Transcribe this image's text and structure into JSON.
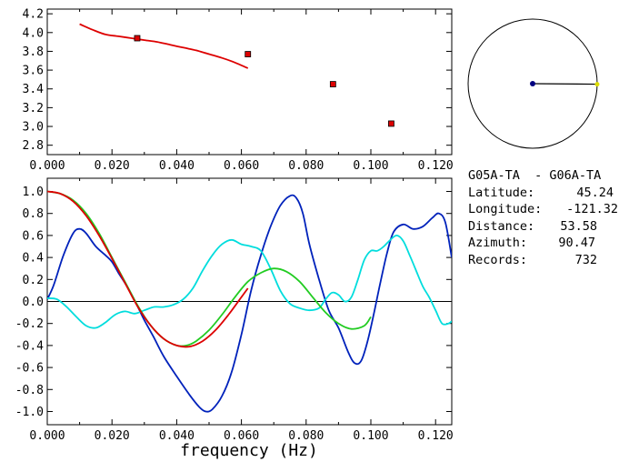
{
  "chart_data": [
    {
      "type": "scatter",
      "xlim": [
        0,
        0.125
      ],
      "ylim": [
        2.7,
        4.25
      ],
      "x_ticks": [
        "0.000",
        "0.020",
        "0.040",
        "0.060",
        "0.080",
        "0.100",
        "0.120"
      ],
      "y_ticks": [
        "2.8",
        "3.0",
        "3.2",
        "3.4",
        "3.6",
        "3.8",
        "4.0",
        "4.2"
      ],
      "grid": false,
      "series": [
        {
          "color": "#dd0000",
          "kind": "line",
          "x": [
            0.01,
            0.014,
            0.018,
            0.022,
            0.026,
            0.03,
            0.034,
            0.038,
            0.042,
            0.046,
            0.05,
            0.054,
            0.058,
            0.062
          ],
          "y": [
            4.09,
            4.03,
            3.98,
            3.96,
            3.94,
            3.92,
            3.9,
            3.87,
            3.84,
            3.81,
            3.77,
            3.73,
            3.68,
            3.62
          ]
        },
        {
          "color": "#dd0000",
          "kind": "markers",
          "x": [
            0.0278,
            0.062,
            0.0883,
            0.1063
          ],
          "y": [
            3.94,
            3.77,
            3.45,
            3.03
          ]
        }
      ]
    },
    {
      "type": "line",
      "xlabel": "frequency (Hz)",
      "xlim": [
        0,
        0.125
      ],
      "ylim": [
        -1.12,
        1.12
      ],
      "x_ticks": [
        "0.000",
        "0.020",
        "0.040",
        "0.060",
        "0.080",
        "0.100",
        "0.120"
      ],
      "y_ticks": [
        "1.0",
        "0.8",
        "0.6",
        "0.4",
        "0.2",
        "0.0",
        "-0.2",
        "-0.4",
        "-0.6",
        "-0.8",
        "-1.0"
      ],
      "zero_line": true,
      "grid": false,
      "series": [
        {
          "color": "#0022bb",
          "x": [
            0,
            0.002,
            0.005,
            0.008,
            0.01,
            0.012,
            0.015,
            0.018,
            0.02,
            0.022,
            0.025,
            0.028,
            0.03,
            0.033,
            0.036,
            0.04,
            0.044,
            0.047,
            0.049,
            0.051,
            0.054,
            0.057,
            0.06,
            0.063,
            0.066,
            0.069,
            0.072,
            0.075,
            0.077,
            0.079,
            0.081,
            0.084,
            0.087,
            0.09,
            0.093,
            0.095,
            0.097,
            0.099,
            0.101,
            0.103,
            0.105,
            0.107,
            0.11,
            0.113,
            0.116,
            0.119,
            0.121,
            0.123,
            0.125
          ],
          "y": [
            0.02,
            0.15,
            0.42,
            0.62,
            0.66,
            0.62,
            0.5,
            0.42,
            0.36,
            0.26,
            0.12,
            -0.05,
            -0.17,
            -0.33,
            -0.5,
            -0.68,
            -0.85,
            -0.96,
            -1.0,
            -0.98,
            -0.86,
            -0.64,
            -0.3,
            0.1,
            0.42,
            0.68,
            0.87,
            0.96,
            0.94,
            0.8,
            0.52,
            0.2,
            -0.08,
            -0.24,
            -0.46,
            -0.56,
            -0.54,
            -0.36,
            -0.1,
            0.18,
            0.44,
            0.63,
            0.7,
            0.66,
            0.68,
            0.76,
            0.8,
            0.72,
            0.4
          ]
        },
        {
          "color": "#00dddd",
          "x": [
            0,
            0.003,
            0.006,
            0.009,
            0.012,
            0.015,
            0.018,
            0.021,
            0.024,
            0.027,
            0.03,
            0.033,
            0.036,
            0.039,
            0.042,
            0.045,
            0.048,
            0.051,
            0.054,
            0.057,
            0.06,
            0.063,
            0.066,
            0.069,
            0.072,
            0.075,
            0.078,
            0.081,
            0.084,
            0.086,
            0.088,
            0.09,
            0.092,
            0.094,
            0.096,
            0.098,
            0.1,
            0.102,
            0.104,
            0.106,
            0.108,
            0.11,
            0.112,
            0.114,
            0.116,
            0.118,
            0.12,
            0.122,
            0.124,
            0.125
          ],
          "y": [
            0.03,
            0.02,
            -0.05,
            -0.14,
            -0.22,
            -0.24,
            -0.19,
            -0.12,
            -0.09,
            -0.11,
            -0.08,
            -0.05,
            -0.05,
            -0.03,
            0.02,
            0.12,
            0.28,
            0.42,
            0.52,
            0.56,
            0.52,
            0.5,
            0.46,
            0.3,
            0.1,
            -0.02,
            -0.06,
            -0.08,
            -0.06,
            0.02,
            0.08,
            0.06,
            0.0,
            0.04,
            0.2,
            0.38,
            0.46,
            0.46,
            0.5,
            0.56,
            0.6,
            0.55,
            0.42,
            0.28,
            0.14,
            0.04,
            -0.08,
            -0.2,
            -0.2,
            -0.18
          ]
        },
        {
          "color": "#22cc22",
          "x": [
            0,
            0.004,
            0.008,
            0.012,
            0.016,
            0.02,
            0.024,
            0.028,
            0.032,
            0.036,
            0.04,
            0.043,
            0.046,
            0.05,
            0.054,
            0.058,
            0.062,
            0.066,
            0.07,
            0.074,
            0.078,
            0.082,
            0.086,
            0.09,
            0.094,
            0.098,
            0.1
          ],
          "y": [
            1.0,
            0.98,
            0.92,
            0.8,
            0.62,
            0.4,
            0.18,
            -0.04,
            -0.22,
            -0.34,
            -0.4,
            -0.4,
            -0.36,
            -0.26,
            -0.12,
            0.04,
            0.18,
            0.26,
            0.3,
            0.27,
            0.18,
            0.04,
            -0.1,
            -0.2,
            -0.25,
            -0.22,
            -0.14
          ]
        },
        {
          "color": "#dd0000",
          "x": [
            0,
            0.004,
            0.008,
            0.012,
            0.016,
            0.02,
            0.024,
            0.028,
            0.032,
            0.036,
            0.04,
            0.044,
            0.048,
            0.052,
            0.056,
            0.06,
            0.062
          ],
          "y": [
            1.0,
            0.98,
            0.91,
            0.78,
            0.6,
            0.39,
            0.17,
            -0.05,
            -0.22,
            -0.34,
            -0.4,
            -0.41,
            -0.36,
            -0.26,
            -0.12,
            0.04,
            0.12
          ]
        }
      ]
    }
  ],
  "colors": {
    "info_text": "#000000",
    "circle_station": "#000080",
    "circle_end": "#dddd00"
  },
  "info": {
    "title": "G05A-TA  - G06A-TA",
    "rows": [
      {
        "label": "Latitude:",
        "value": "45.24"
      },
      {
        "label": "Longitude:",
        "value": "-121.32"
      },
      {
        "label": "Distance:",
        "value": "53.58"
      },
      {
        "label": "Azimuth:",
        "value": "90.47"
      },
      {
        "label": "Records:",
        "value": "732"
      }
    ],
    "azimuth_deg": 90.47
  }
}
